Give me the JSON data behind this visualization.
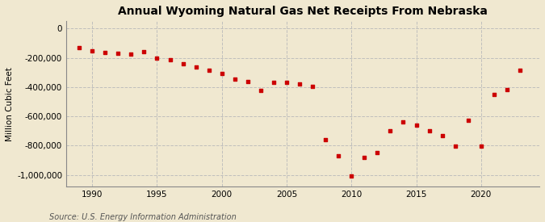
{
  "title": "Annual Wyoming Natural Gas Net Receipts From Nebraska",
  "ylabel": "Million Cubic Feet",
  "source": "Source: U.S. Energy Information Administration",
  "background_color": "#f0e8d0",
  "plot_bg_color": "#f0e8d0",
  "marker_color": "#cc0000",
  "grid_color": "#bbbbbb",
  "years": [
    1989,
    1990,
    1991,
    1992,
    1993,
    1994,
    1995,
    1996,
    1997,
    1998,
    1999,
    2000,
    2001,
    2002,
    2003,
    2004,
    2005,
    2006,
    2007,
    2008,
    2009,
    2010,
    2011,
    2012,
    2013,
    2014,
    2015,
    2016,
    2017,
    2018,
    2019,
    2020,
    2021,
    2022,
    2023
  ],
  "values": [
    -130000,
    -155000,
    -165000,
    -170000,
    -175000,
    -160000,
    -200000,
    -215000,
    -240000,
    -265000,
    -285000,
    -305000,
    -345000,
    -360000,
    -420000,
    -365000,
    -365000,
    -380000,
    -395000,
    -760000,
    -870000,
    -1005000,
    -880000,
    -850000,
    -700000,
    -640000,
    -660000,
    -700000,
    -730000,
    -805000,
    -625000,
    -805000,
    -450000,
    -415000,
    -285000
  ],
  "xlim": [
    1988.0,
    2024.5
  ],
  "ylim": [
    -1080000,
    50000
  ],
  "yticks": [
    0,
    -200000,
    -400000,
    -600000,
    -800000,
    -1000000
  ],
  "xticks": [
    1990,
    1995,
    2000,
    2005,
    2010,
    2015,
    2020
  ]
}
